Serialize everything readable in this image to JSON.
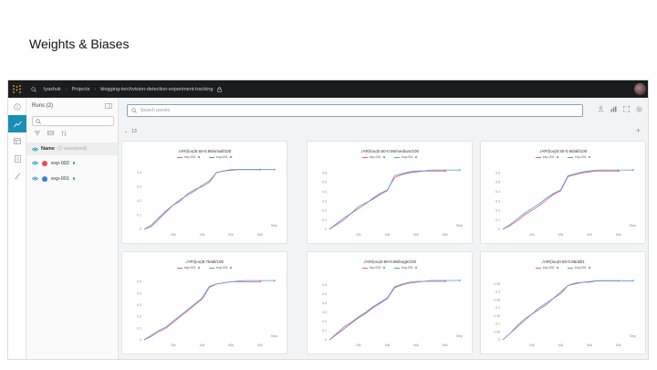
{
  "slide_title": "Weights & Biases",
  "topbar": {
    "crumbs": [
      "lyashuk",
      "Projects",
      "blogging-torchvision-detection-experiment-tracking"
    ]
  },
  "runs": {
    "title": "Runs (2)",
    "column_name": "Name",
    "column_note": "(2 visualized)",
    "items": [
      {
        "name": "exp-002",
        "color": "#e84c4c"
      },
      {
        "name": "exp-001",
        "color": "#3b7fd9"
      }
    ]
  },
  "main": {
    "search_placeholder": "Search panels",
    "section_count": "13"
  },
  "colors": {
    "exp_002": "#e8606a",
    "exp_001": "#4f96e3",
    "accent": "#1a8fb5"
  },
  "chart_data": [
    {
      "type": "line",
      "title": "./AR/(iou)0.50-0.95/small/100",
      "xlabel": "Step",
      "x_ticks": [
        "20k",
        "40k",
        "60k",
        "80k"
      ],
      "y_ticks": [
        "0",
        "0.1",
        "0.2",
        "0.3",
        "0.4"
      ],
      "ylim": [
        0,
        0.45
      ],
      "xlim": [
        0,
        92
      ],
      "legend": [
        "exp-002",
        "exp-001"
      ],
      "series": [
        {
          "name": "exp-002",
          "x": [
            0,
            5,
            10,
            15,
            20,
            25,
            30,
            35,
            40,
            45,
            50,
            55,
            60,
            65,
            70,
            75,
            80
          ],
          "y": [
            0,
            0.02,
            0.07,
            0.12,
            0.17,
            0.21,
            0.24,
            0.27,
            0.31,
            0.34,
            0.4,
            0.41,
            0.42,
            0.42,
            0.42,
            0.42,
            0.42
          ]
        },
        {
          "name": "exp-001",
          "x": [
            0,
            5,
            10,
            15,
            20,
            25,
            30,
            35,
            40,
            45,
            50,
            55,
            60,
            65,
            70,
            75,
            80,
            85,
            90
          ],
          "y": [
            0,
            0.03,
            0.08,
            0.13,
            0.17,
            0.2,
            0.25,
            0.28,
            0.3,
            0.33,
            0.4,
            0.41,
            0.415,
            0.42,
            0.42,
            0.42,
            0.42,
            0.42,
            0.42
          ]
        }
      ]
    },
    {
      "type": "line",
      "title": "./AR/(iou)0.50-0.95/medium/100",
      "xlabel": "Step",
      "x_ticks": [
        "20k",
        "40k",
        "60k",
        "80k"
      ],
      "y_ticks": [
        "0",
        "0.1",
        "0.2",
        "0.3",
        "0.4",
        "0.5",
        "0.6"
      ],
      "ylim": [
        0,
        0.68
      ],
      "xlim": [
        0,
        92
      ],
      "legend": [
        "exp-002",
        "exp-001"
      ],
      "series": [
        {
          "name": "exp-002",
          "x": [
            0,
            5,
            10,
            15,
            20,
            25,
            30,
            35,
            40,
            45,
            50,
            55,
            60,
            65,
            70,
            75,
            80
          ],
          "y": [
            0,
            0.05,
            0.1,
            0.17,
            0.22,
            0.27,
            0.33,
            0.38,
            0.42,
            0.55,
            0.58,
            0.6,
            0.61,
            0.62,
            0.62,
            0.62,
            0.62
          ]
        },
        {
          "name": "exp-001",
          "x": [
            0,
            5,
            10,
            15,
            20,
            25,
            30,
            35,
            40,
            45,
            50,
            55,
            60,
            65,
            70,
            75,
            80,
            85,
            90
          ],
          "y": [
            0,
            0.06,
            0.12,
            0.17,
            0.24,
            0.28,
            0.32,
            0.37,
            0.41,
            0.57,
            0.59,
            0.61,
            0.62,
            0.62,
            0.63,
            0.63,
            0.63,
            0.63,
            0.63
          ]
        }
      ]
    },
    {
      "type": "line",
      "title": "./AP/(iou)0.50-0.95/all/100",
      "xlabel": "Step",
      "x_ticks": [
        "20k",
        "40k",
        "60k",
        "80k"
      ],
      "y_ticks": [
        "0",
        "0.1",
        "0.2",
        "0.3",
        "0.4",
        "0.5",
        "0.6"
      ],
      "ylim": [
        0,
        0.68
      ],
      "xlim": [
        0,
        92
      ],
      "legend": [
        "exp-002",
        "exp-001"
      ],
      "series": [
        {
          "name": "exp-002",
          "x": [
            0,
            5,
            10,
            15,
            20,
            25,
            30,
            35,
            40,
            45,
            50,
            55,
            60,
            65,
            70,
            75,
            80
          ],
          "y": [
            0,
            0.04,
            0.09,
            0.15,
            0.2,
            0.25,
            0.31,
            0.37,
            0.41,
            0.56,
            0.58,
            0.6,
            0.61,
            0.62,
            0.62,
            0.62,
            0.62
          ]
        },
        {
          "name": "exp-001",
          "x": [
            0,
            5,
            10,
            15,
            20,
            25,
            30,
            35,
            40,
            45,
            50,
            55,
            60,
            65,
            70,
            75,
            80,
            85,
            90
          ],
          "y": [
            0,
            0.05,
            0.11,
            0.17,
            0.22,
            0.27,
            0.33,
            0.38,
            0.42,
            0.57,
            0.59,
            0.61,
            0.62,
            0.63,
            0.63,
            0.63,
            0.63,
            0.63,
            0.63
          ]
        }
      ]
    },
    {
      "type": "line",
      "title": "./AP/(iou)0.75/all/100",
      "xlabel": "Step",
      "x_ticks": [
        "20k",
        "40k",
        "60k",
        "80k"
      ],
      "y_ticks": [
        "0",
        "0.1",
        "0.2",
        "0.3",
        "0.4",
        "0.5"
      ],
      "ylim": [
        0,
        0.55
      ],
      "xlim": [
        0,
        92
      ],
      "legend": [
        "exp-002",
        "exp-001"
      ],
      "series": [
        {
          "name": "exp-002",
          "x": [
            0,
            5,
            10,
            15,
            20,
            25,
            30,
            35,
            40,
            45,
            50,
            55,
            60,
            65,
            70,
            75,
            80
          ],
          "y": [
            0,
            0.03,
            0.07,
            0.1,
            0.15,
            0.2,
            0.25,
            0.3,
            0.35,
            0.45,
            0.48,
            0.49,
            0.5,
            0.5,
            0.5,
            0.5,
            0.5
          ]
        },
        {
          "name": "exp-001",
          "x": [
            0,
            5,
            10,
            15,
            20,
            25,
            30,
            35,
            40,
            45,
            50,
            55,
            60,
            65,
            70,
            75,
            80,
            85,
            90
          ],
          "y": [
            0,
            0.04,
            0.08,
            0.11,
            0.16,
            0.21,
            0.26,
            0.31,
            0.36,
            0.46,
            0.48,
            0.49,
            0.5,
            0.505,
            0.51,
            0.51,
            0.51,
            0.51,
            0.51
          ]
        }
      ]
    },
    {
      "type": "line",
      "title": "./AR/(iou)0.50-0.95/large/100",
      "xlabel": "Step",
      "x_ticks": [
        "20k",
        "40k",
        "60k",
        "80k"
      ],
      "y_ticks": [
        "0",
        "0.1",
        "0.2",
        "0.3",
        "0.4",
        "0.5",
        "0.6"
      ],
      "ylim": [
        0,
        0.7
      ],
      "xlim": [
        0,
        92
      ],
      "legend": [
        "exp-002",
        "exp-001"
      ],
      "series": [
        {
          "name": "exp-002",
          "x": [
            0,
            5,
            10,
            15,
            20,
            25,
            30,
            35,
            40,
            45,
            50,
            55,
            60,
            65,
            70,
            75,
            80
          ],
          "y": [
            0,
            0.06,
            0.12,
            0.18,
            0.24,
            0.29,
            0.35,
            0.4,
            0.45,
            0.57,
            0.6,
            0.62,
            0.63,
            0.64,
            0.64,
            0.64,
            0.64
          ]
        },
        {
          "name": "exp-001",
          "x": [
            0,
            5,
            10,
            15,
            20,
            25,
            30,
            35,
            40,
            45,
            50,
            55,
            60,
            65,
            70,
            75,
            80,
            85,
            90
          ],
          "y": [
            0,
            0.07,
            0.14,
            0.19,
            0.25,
            0.3,
            0.36,
            0.41,
            0.46,
            0.58,
            0.61,
            0.63,
            0.64,
            0.64,
            0.65,
            0.65,
            0.65,
            0.65,
            0.65
          ]
        }
      ]
    },
    {
      "type": "line",
      "title": "./AR/(iou)0.50-0.95/all/1",
      "xlabel": "Step",
      "x_ticks": [
        "20k",
        "40k",
        "60k",
        "80k"
      ],
      "y_ticks": [
        "0",
        "0.05",
        "0.1",
        "0.15",
        "0.2",
        "0.25",
        "0.3",
        "0.35"
      ],
      "ylim": [
        0,
        0.4
      ],
      "xlim": [
        0,
        92
      ],
      "legend": [
        "exp-002",
        "exp-001"
      ],
      "series": [
        {
          "name": "exp-002",
          "x": [
            0,
            5,
            10,
            15,
            20,
            25,
            30,
            35,
            40,
            45,
            50,
            55,
            60,
            65,
            70,
            75,
            80
          ],
          "y": [
            0,
            0.04,
            0.08,
            0.12,
            0.16,
            0.19,
            0.22,
            0.26,
            0.29,
            0.34,
            0.35,
            0.36,
            0.36,
            0.37,
            0.37,
            0.37,
            0.37
          ]
        },
        {
          "name": "exp-001",
          "x": [
            0,
            5,
            10,
            15,
            20,
            25,
            30,
            35,
            40,
            45,
            50,
            55,
            60,
            65,
            70,
            75,
            80,
            85,
            90
          ],
          "y": [
            0,
            0.04,
            0.09,
            0.13,
            0.16,
            0.2,
            0.23,
            0.26,
            0.3,
            0.34,
            0.355,
            0.36,
            0.365,
            0.37,
            0.37,
            0.37,
            0.37,
            0.37,
            0.37
          ]
        }
      ]
    }
  ]
}
